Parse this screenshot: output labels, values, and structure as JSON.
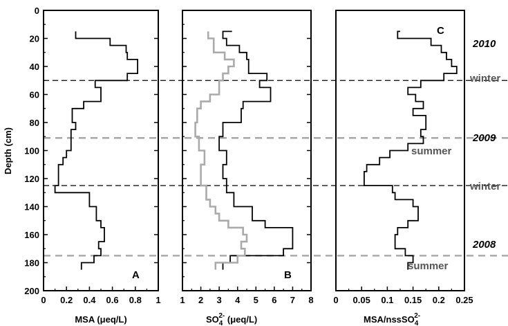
{
  "chart_data": [
    {
      "type": "line",
      "panel": "A",
      "xlabel": "MSA (μeq/L)",
      "ylabel": "Depth (cm)",
      "xlim": [
        0,
        1
      ],
      "ylim": [
        200,
        0
      ],
      "xticks": [
        "0",
        "0.2",
        "0.4",
        "0.6",
        "0.8",
        "1"
      ],
      "yticks": [
        "0",
        "20",
        "40",
        "60",
        "80",
        "100",
        "120",
        "140",
        "160",
        "180",
        "200"
      ],
      "series": [
        {
          "color": "#000000",
          "profile": [
            [
              0.28,
              15
            ],
            [
              0.28,
              20
            ],
            [
              0.58,
              20
            ],
            [
              0.58,
              25
            ],
            [
              0.72,
              25
            ],
            [
              0.72,
              30
            ],
            [
              0.73,
              30
            ],
            [
              0.73,
              35
            ],
            [
              0.82,
              35
            ],
            [
              0.82,
              45
            ],
            [
              0.73,
              45
            ],
            [
              0.73,
              50
            ],
            [
              0.45,
              50
            ],
            [
              0.45,
              55
            ],
            [
              0.5,
              55
            ],
            [
              0.5,
              65
            ],
            [
              0.35,
              65
            ],
            [
              0.35,
              70
            ],
            [
              0.25,
              70
            ],
            [
              0.25,
              80
            ],
            [
              0.28,
              80
            ],
            [
              0.28,
              85
            ],
            [
              0.24,
              85
            ],
            [
              0.24,
              100
            ],
            [
              0.2,
              100
            ],
            [
              0.2,
              105
            ],
            [
              0.17,
              105
            ],
            [
              0.17,
              110
            ],
            [
              0.13,
              110
            ],
            [
              0.13,
              125
            ],
            [
              0.1,
              125
            ],
            [
              0.1,
              130
            ],
            [
              0.4,
              130
            ],
            [
              0.4,
              140
            ],
            [
              0.46,
              140
            ],
            [
              0.46,
              150
            ],
            [
              0.5,
              150
            ],
            [
              0.5,
              155
            ],
            [
              0.53,
              155
            ],
            [
              0.53,
              165
            ],
            [
              0.48,
              165
            ],
            [
              0.48,
              170
            ],
            [
              0.5,
              170
            ],
            [
              0.5,
              175
            ],
            [
              0.44,
              175
            ],
            [
              0.44,
              180
            ],
            [
              0.33,
              180
            ],
            [
              0.33,
              185
            ]
          ]
        }
      ]
    },
    {
      "type": "line",
      "panel": "B",
      "xlabel_main": "SO",
      "xlabel_sub": "4",
      "xlabel_sup": "2-",
      "xlabel_unit": " (μeq/L)",
      "xlim": [
        1,
        8
      ],
      "ylim": [
        200,
        0
      ],
      "xticks": [
        "1",
        "2",
        "3",
        "4",
        "5",
        "6",
        "7",
        "8"
      ],
      "series": [
        {
          "color": "#000000",
          "profile": [
            [
              3.7,
              15
            ],
            [
              3.2,
              15
            ],
            [
              3.2,
              20
            ],
            [
              3.4,
              20
            ],
            [
              3.4,
              25
            ],
            [
              4.1,
              25
            ],
            [
              4.1,
              30
            ],
            [
              4.5,
              30
            ],
            [
              4.5,
              35
            ],
            [
              4.6,
              35
            ],
            [
              4.6,
              45
            ],
            [
              5.6,
              45
            ],
            [
              5.6,
              50
            ],
            [
              5.2,
              50
            ],
            [
              5.2,
              55
            ],
            [
              5.8,
              55
            ],
            [
              5.8,
              65
            ],
            [
              4.3,
              65
            ],
            [
              4.3,
              70
            ],
            [
              4.2,
              70
            ],
            [
              4.2,
              80
            ],
            [
              3.2,
              80
            ],
            [
              3.2,
              90
            ],
            [
              3.0,
              90
            ],
            [
              3.0,
              100
            ],
            [
              3.4,
              100
            ],
            [
              3.4,
              110
            ],
            [
              3.2,
              110
            ],
            [
              3.2,
              120
            ],
            [
              3.4,
              120
            ],
            [
              3.4,
              130
            ],
            [
              3.8,
              130
            ],
            [
              3.8,
              140
            ],
            [
              4.8,
              140
            ],
            [
              4.8,
              150
            ],
            [
              5.5,
              150
            ],
            [
              5.5,
              155
            ],
            [
              7.0,
              155
            ],
            [
              7.0,
              170
            ],
            [
              6.5,
              170
            ],
            [
              6.5,
              175
            ],
            [
              3.6,
              175
            ],
            [
              3.6,
              180
            ],
            [
              3.2,
              180
            ],
            [
              3.2,
              185
            ]
          ]
        },
        {
          "color": "#aaaaaa",
          "profile": [
            [
              2.4,
              15
            ],
            [
              2.4,
              20
            ],
            [
              2.7,
              20
            ],
            [
              2.7,
              30
            ],
            [
              3.3,
              30
            ],
            [
              3.3,
              35
            ],
            [
              3.8,
              35
            ],
            [
              3.8,
              40
            ],
            [
              3.5,
              40
            ],
            [
              3.5,
              45
            ],
            [
              3.2,
              45
            ],
            [
              3.2,
              50
            ],
            [
              3.0,
              50
            ],
            [
              3.0,
              60
            ],
            [
              2.5,
              60
            ],
            [
              2.5,
              65
            ],
            [
              2.0,
              65
            ],
            [
              2.0,
              70
            ],
            [
              1.8,
              70
            ],
            [
              1.8,
              80
            ],
            [
              1.7,
              80
            ],
            [
              1.7,
              90
            ],
            [
              1.9,
              90
            ],
            [
              1.9,
              100
            ],
            [
              2.2,
              100
            ],
            [
              2.2,
              110
            ],
            [
              2.0,
              110
            ],
            [
              2.0,
              125
            ],
            [
              2.3,
              125
            ],
            [
              2.3,
              135
            ],
            [
              2.5,
              135
            ],
            [
              2.5,
              140
            ],
            [
              2.8,
              140
            ],
            [
              2.8,
              145
            ],
            [
              3.0,
              145
            ],
            [
              3.0,
              150
            ],
            [
              3.5,
              150
            ],
            [
              3.5,
              155
            ],
            [
              4.3,
              155
            ],
            [
              4.3,
              160
            ],
            [
              4.5,
              160
            ],
            [
              4.5,
              165
            ],
            [
              4.2,
              165
            ],
            [
              4.2,
              170
            ],
            [
              4.4,
              170
            ],
            [
              4.4,
              175
            ],
            [
              4.0,
              175
            ],
            [
              4.0,
              180
            ],
            [
              2.8,
              180
            ],
            [
              2.8,
              185
            ]
          ]
        }
      ]
    },
    {
      "type": "line",
      "panel": "C",
      "xlabel_main": "MSA/nssSO",
      "xlabel_sub": "4",
      "xlabel_sup": "2-",
      "xlim": [
        0,
        0.25
      ],
      "ylim": [
        200,
        0
      ],
      "xticks": [
        "0",
        "0.05",
        "0.1",
        "0.15",
        "0.2",
        "0.25"
      ],
      "series": [
        {
          "color": "#000000",
          "profile": [
            [
              0.125,
              15
            ],
            [
              0.12,
              15
            ],
            [
              0.12,
              20
            ],
            [
              0.185,
              20
            ],
            [
              0.185,
              25
            ],
            [
              0.205,
              25
            ],
            [
              0.205,
              30
            ],
            [
              0.215,
              30
            ],
            [
              0.215,
              35
            ],
            [
              0.225,
              35
            ],
            [
              0.225,
              40
            ],
            [
              0.235,
              40
            ],
            [
              0.235,
              45
            ],
            [
              0.21,
              45
            ],
            [
              0.21,
              50
            ],
            [
              0.165,
              50
            ],
            [
              0.165,
              55
            ],
            [
              0.14,
              55
            ],
            [
              0.14,
              60
            ],
            [
              0.155,
              60
            ],
            [
              0.155,
              65
            ],
            [
              0.17,
              65
            ],
            [
              0.17,
              70
            ],
            [
              0.15,
              70
            ],
            [
              0.15,
              75
            ],
            [
              0.175,
              75
            ],
            [
              0.175,
              85
            ],
            [
              0.165,
              85
            ],
            [
              0.165,
              90
            ],
            [
              0.17,
              90
            ],
            [
              0.17,
              95
            ],
            [
              0.14,
              95
            ],
            [
              0.14,
              100
            ],
            [
              0.105,
              100
            ],
            [
              0.105,
              105
            ],
            [
              0.085,
              105
            ],
            [
              0.085,
              110
            ],
            [
              0.06,
              110
            ],
            [
              0.06,
              115
            ],
            [
              0.055,
              115
            ],
            [
              0.055,
              125
            ],
            [
              0.11,
              125
            ],
            [
              0.11,
              130
            ],
            [
              0.115,
              130
            ],
            [
              0.115,
              135
            ],
            [
              0.15,
              135
            ],
            [
              0.15,
              140
            ],
            [
              0.16,
              140
            ],
            [
              0.16,
              150
            ],
            [
              0.14,
              150
            ],
            [
              0.14,
              155
            ],
            [
              0.12,
              155
            ],
            [
              0.12,
              160
            ],
            [
              0.115,
              160
            ],
            [
              0.115,
              170
            ],
            [
              0.135,
              170
            ],
            [
              0.135,
              175
            ],
            [
              0.15,
              175
            ],
            [
              0.15,
              180
            ],
            [
              0.14,
              180
            ],
            [
              0.14,
              185
            ]
          ]
        }
      ],
      "panel_label_overlay_note": ""
    }
  ],
  "panel_labels": {
    "A": "A",
    "B": "B",
    "C": "C"
  },
  "reference_lines": [
    {
      "depth": 50,
      "color": "#000000"
    },
    {
      "depth": 91,
      "color": "#aaaaaa"
    },
    {
      "depth": 125,
      "color": "#000000"
    },
    {
      "depth": 175,
      "color": "#aaaaaa"
    }
  ],
  "annotations": {
    "years": [
      "2010",
      "2009",
      "2008"
    ],
    "seasons": [
      "winter",
      "summer",
      "winter",
      "summer"
    ]
  }
}
